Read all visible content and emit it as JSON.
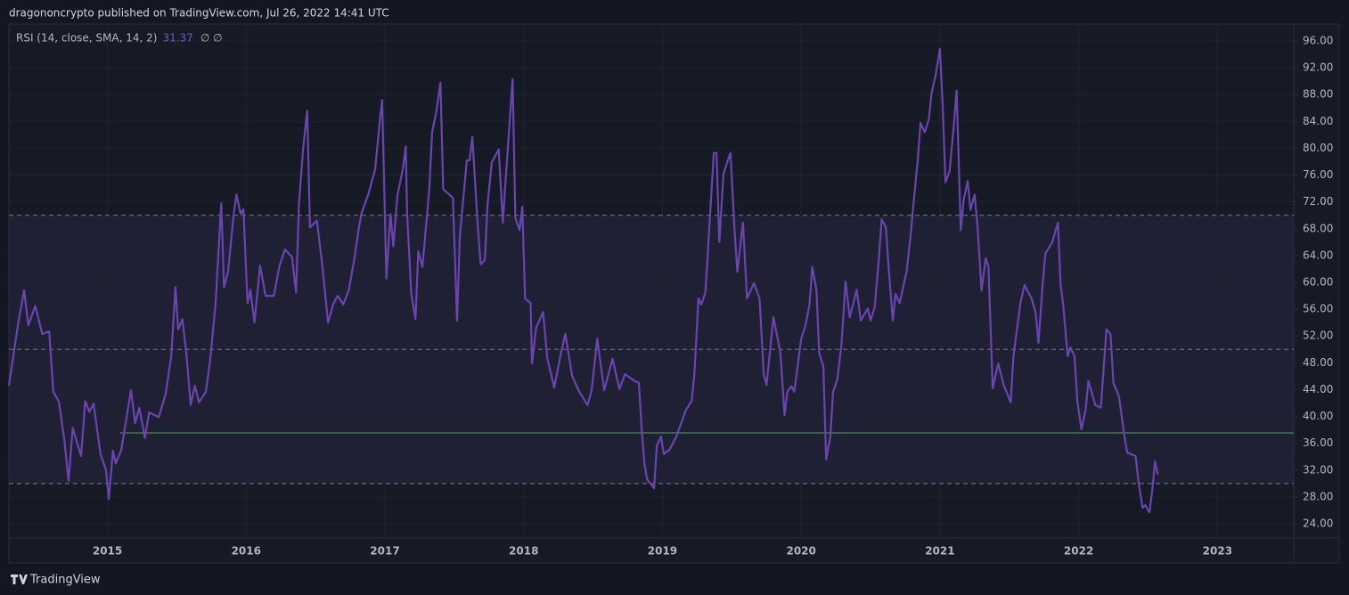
{
  "header": {
    "title": "dragononcrypto published on TradingView.com, Jul 26, 2022 14:41 UTC"
  },
  "footer": {
    "brand": "TradingView"
  },
  "chart_data": {
    "type": "line",
    "legend": {
      "label": "RSI (14, close, SMA, 14, 2)",
      "symbols": "∅ ∅"
    },
    "series": [
      {
        "name": "RSI",
        "color": "#6a44b0",
        "x": [
          2014.29,
          2014.36,
          2014.4,
          2014.43,
          2014.48,
          2014.53,
          2014.58,
          2014.61,
          2014.65,
          2014.69,
          2014.72,
          2014.75,
          2014.81,
          2014.84,
          2014.87,
          2014.9,
          2014.95,
          2014.99,
          2015.01,
          2015.04,
          2015.06,
          2015.1,
          2015.17,
          2015.2,
          2015.23,
          2015.27,
          2015.3,
          2015.37,
          2015.42,
          2015.46,
          2015.49,
          2015.51,
          2015.54,
          2015.57,
          2015.6,
          2015.63,
          2015.66,
          2015.71,
          2015.74,
          2015.78,
          2015.82,
          2015.84,
          2015.87,
          2015.91,
          2015.93,
          2015.96,
          2015.98,
          2016.01,
          2016.03,
          2016.06,
          2016.1,
          2016.14,
          2016.2,
          2016.24,
          2016.28,
          2016.33,
          2016.36,
          2016.38,
          2016.41,
          2016.44,
          2016.46,
          2016.51,
          2016.55,
          2016.59,
          2016.63,
          2016.66,
          2016.7,
          2016.74,
          2016.78,
          2016.81,
          2016.83,
          2016.88,
          2016.93,
          2016.96,
          2016.98,
          2017.01,
          2017.04,
          2017.06,
          2017.09,
          2017.13,
          2017.15,
          2017.16,
          2017.19,
          2017.22,
          2017.24,
          2017.27,
          2017.32,
          2017.34,
          2017.37,
          2017.4,
          2017.42,
          2017.49,
          2017.52,
          2017.54,
          2017.59,
          2017.61,
          2017.63,
          2017.67,
          2017.69,
          2017.72,
          2017.74,
          2017.77,
          2017.82,
          2017.85,
          2017.87,
          2017.92,
          2017.94,
          2017.97,
          2017.99,
          2018.01,
          2018.05,
          2018.06,
          2018.09,
          2018.14,
          2018.17,
          2018.22,
          2018.27,
          2018.3,
          2018.35,
          2018.4,
          2018.46,
          2018.49,
          2018.53,
          2018.58,
          2018.64,
          2018.69,
          2018.73,
          2018.8,
          2018.83,
          2018.85,
          2018.87,
          2018.89,
          2018.94,
          2018.96,
          2018.99,
          2019.01,
          2019.05,
          2019.1,
          2019.17,
          2019.21,
          2019.23,
          2019.26,
          2019.28,
          2019.31,
          2019.34,
          2019.37,
          2019.39,
          2019.41,
          2019.44,
          2019.46,
          2019.49,
          2019.52,
          2019.54,
          2019.58,
          2019.61,
          2019.66,
          2019.7,
          2019.73,
          2019.75,
          2019.8,
          2019.85,
          2019.88,
          2019.9,
          2019.93,
          2019.95,
          2020.0,
          2020.03,
          2020.06,
          2020.08,
          2020.11,
          2020.13,
          2020.16,
          2020.18,
          2020.21,
          2020.23,
          2020.26,
          2020.29,
          2020.32,
          2020.35,
          2020.4,
          2020.43,
          2020.48,
          2020.5,
          2020.53,
          2020.56,
          2020.58,
          2020.61,
          2020.63,
          2020.66,
          2020.68,
          2020.71,
          2020.76,
          2020.79,
          2020.81,
          2020.84,
          2020.86,
          2020.89,
          2020.92,
          2020.94,
          2020.97,
          2021.0,
          2021.02,
          2021.04,
          2021.07,
          2021.1,
          2021.12,
          2021.15,
          2021.17,
          2021.2,
          2021.22,
          2021.25,
          2021.27,
          2021.3,
          2021.33,
          2021.35,
          2021.38,
          2021.42,
          2021.46,
          2021.51,
          2021.53,
          2021.58,
          2021.61,
          2021.66,
          2021.69,
          2021.71,
          2021.74,
          2021.76,
          2021.81,
          2021.85,
          2021.87,
          2021.89,
          2021.92,
          2021.94,
          2021.97,
          2021.99,
          2022.02,
          2022.05,
          2022.07,
          2022.12,
          2022.16,
          2022.2,
          2022.23,
          2022.25,
          2022.29,
          2022.33,
          2022.35,
          2022.41,
          2022.43,
          2022.46,
          2022.48,
          2022.51,
          2022.53,
          2022.55,
          2022.57
        ],
        "values": [
          44.6,
          54.3,
          58.8,
          53.6,
          56.5,
          52.3,
          52.7,
          43.7,
          42.2,
          36.4,
          30.4,
          38.3,
          34.1,
          42.3,
          40.7,
          41.9,
          34.4,
          32.0,
          27.7,
          34.9,
          33.0,
          35.0,
          43.9,
          39.0,
          41.3,
          36.8,
          40.6,
          39.9,
          43.4,
          49.0,
          59.3,
          53.0,
          54.5,
          49.2,
          41.7,
          44.6,
          42.1,
          43.7,
          48.3,
          56.9,
          71.8,
          59.3,
          61.6,
          70.2,
          73.1,
          70.2,
          70.9,
          56.9,
          58.9,
          54.0,
          62.5,
          58.0,
          58.0,
          62.5,
          64.9,
          63.8,
          58.5,
          71.5,
          79.8,
          85.6,
          68.2,
          69.2,
          62.3,
          54.0,
          56.9,
          58.0,
          56.7,
          58.9,
          63.6,
          67.8,
          70.2,
          73.1,
          76.9,
          83.5,
          87.2,
          60.6,
          70.2,
          65.4,
          72.9,
          77.1,
          80.3,
          70.2,
          58.3,
          54.5,
          64.6,
          62.3,
          73.9,
          82.4,
          85.4,
          89.8,
          73.9,
          72.6,
          54.3,
          66.9,
          78.2,
          78.2,
          81.7,
          68.2,
          62.7,
          63.3,
          71.6,
          77.9,
          79.8,
          68.9,
          75.3,
          90.3,
          69.6,
          67.8,
          71.3,
          57.6,
          56.9,
          47.9,
          53.2,
          55.6,
          48.7,
          44.3,
          49.6,
          52.3,
          46.0,
          43.7,
          41.7,
          43.9,
          51.6,
          43.9,
          48.6,
          44.1,
          46.3,
          45.3,
          45.0,
          38.3,
          33.0,
          30.6,
          29.3,
          35.7,
          37.0,
          34.4,
          35.0,
          37.0,
          41.0,
          42.3,
          46.3,
          57.6,
          56.7,
          58.5,
          68.9,
          79.3,
          79.3,
          66.0,
          76.2,
          77.5,
          79.3,
          67.8,
          61.6,
          68.9,
          57.6,
          59.9,
          57.6,
          46.3,
          44.7,
          54.8,
          49.6,
          40.2,
          43.7,
          44.5,
          43.7,
          51.6,
          53.5,
          56.7,
          62.3,
          58.9,
          49.5,
          47.4,
          33.6,
          37.0,
          43.7,
          45.5,
          50.6,
          60.1,
          54.8,
          58.9,
          54.3,
          56.1,
          54.3,
          56.3,
          63.6,
          69.4,
          68.2,
          62.3,
          54.3,
          58.3,
          56.9,
          61.6,
          67.3,
          71.8,
          78.2,
          83.8,
          82.4,
          84.3,
          88.3,
          91.0,
          94.8,
          86.4,
          74.9,
          76.6,
          83.5,
          88.6,
          67.8,
          72.2,
          75.1,
          70.8,
          73.1,
          68.6,
          58.8,
          63.6,
          62.3,
          44.2,
          47.9,
          44.7,
          42.1,
          49.0,
          56.9,
          59.6,
          57.6,
          55.4,
          51.0,
          59.6,
          64.3,
          66.0,
          68.9,
          59.6,
          56.3,
          49.0,
          50.3,
          49.0,
          42.3,
          38.1,
          41.0,
          45.3,
          41.7,
          41.3,
          53.0,
          52.3,
          45.0,
          43.0,
          37.0,
          34.6,
          34.1,
          30.4,
          26.4,
          26.8,
          25.7,
          29.0,
          33.3,
          31.37
        ]
      }
    ],
    "levels": [
      70,
      50,
      30
    ],
    "band": [
      30,
      70
    ],
    "band_color": "#7e57c2",
    "level_color": "#787b86",
    "trend_line": {
      "value": 37.55,
      "x_start": 2015.09,
      "color": "#3b7a48"
    },
    "xlim": [
      2014.29,
      2023.55
    ],
    "xticks": [
      2015,
      2016,
      2017,
      2018,
      2019,
      2020,
      2021,
      2022,
      2023
    ],
    "ylim": [
      21.88,
      98.52
    ],
    "yticks": [
      {
        "value": 24,
        "label": "24.00"
      },
      {
        "value": 28,
        "label": "28.00"
      },
      {
        "value": 32,
        "label": "32.00"
      },
      {
        "value": 36,
        "label": "36.00"
      },
      {
        "value": 40,
        "label": "40.00"
      },
      {
        "value": 44,
        "label": "44.00"
      },
      {
        "value": 48,
        "label": "48.00"
      },
      {
        "value": 52,
        "label": "52.00"
      },
      {
        "value": 56,
        "label": "56.00"
      },
      {
        "value": 60,
        "label": "60.00"
      },
      {
        "value": 64,
        "label": "64.00"
      },
      {
        "value": 68,
        "label": "68.00"
      },
      {
        "value": 72,
        "label": "72.00"
      },
      {
        "value": 76,
        "label": "76.00"
      },
      {
        "value": 80,
        "label": "80.00"
      },
      {
        "value": 84,
        "label": "84.00"
      },
      {
        "value": 88,
        "label": "88.00"
      },
      {
        "value": 92,
        "label": "92.00"
      },
      {
        "value": 96,
        "label": "96.00"
      }
    ],
    "grid": true
  }
}
